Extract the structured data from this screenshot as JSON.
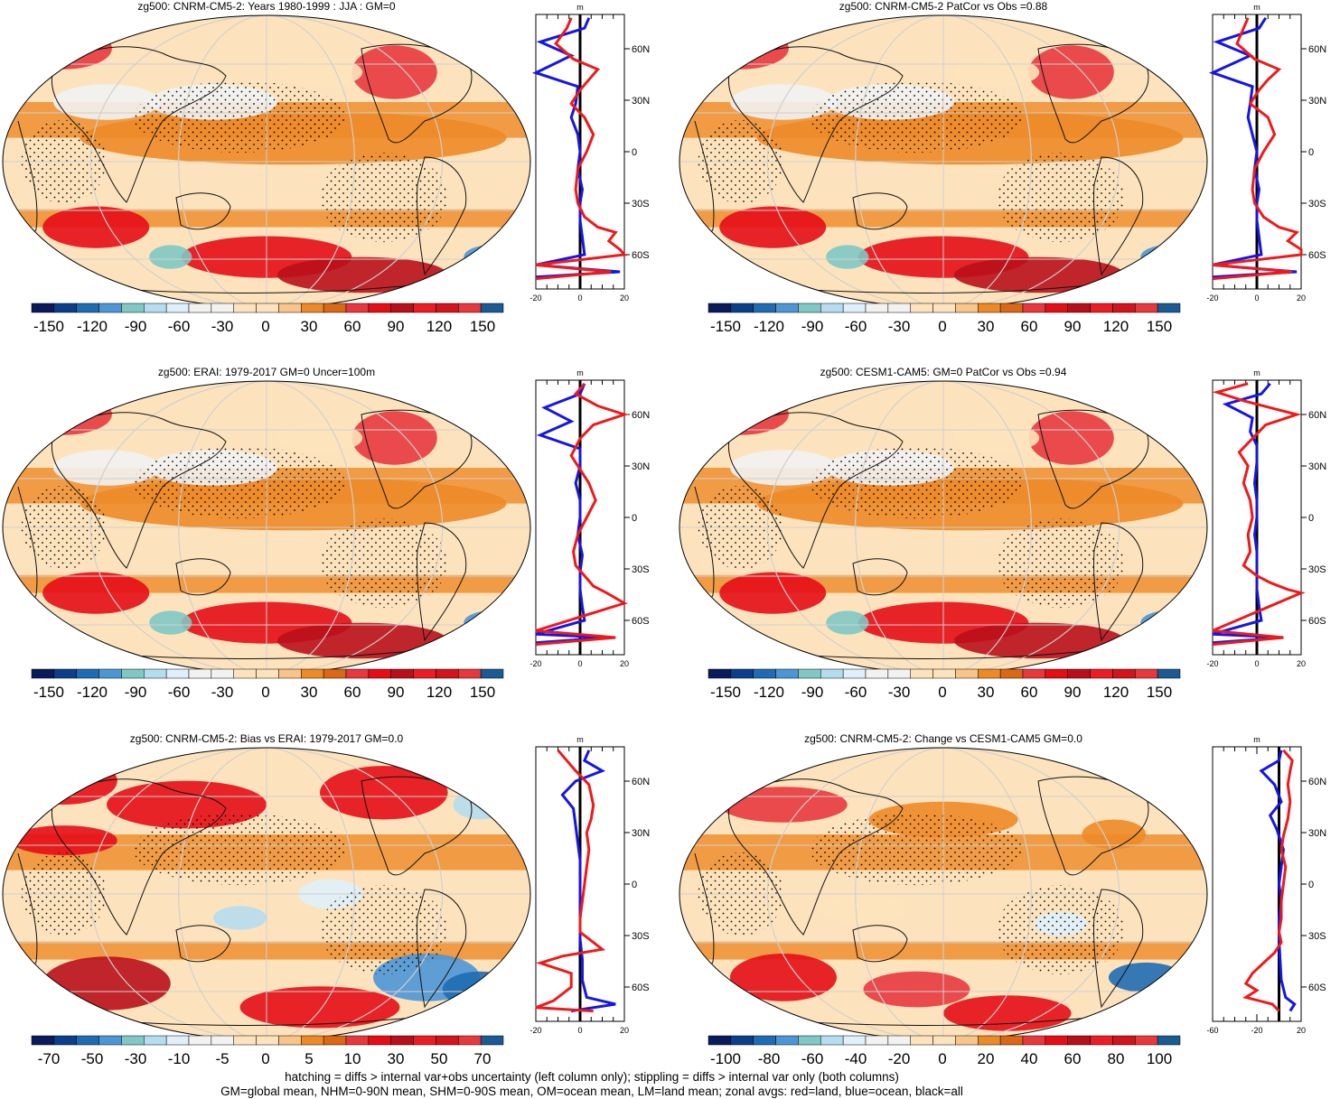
{
  "palette": [
    "#0a1a5a",
    "#0c3f8a",
    "#1f6cb3",
    "#4d96d6",
    "#7fc8c4",
    "#b6dcef",
    "#dff0fa",
    "#f2f2f2",
    "#fde3bd",
    "#f9c48a",
    "#ed8a27",
    "#db6815",
    "#e8383e",
    "#e60d16",
    "#b90f1b",
    "#ed1c24",
    "#d2141c",
    "#1b5a93"
  ],
  "panels": [
    {
      "title": "zg500: CNRM-CM5-2: Years 1980-1999 : JJA : GM=0",
      "colorbar_labels": [
        "-150",
        "-120",
        "-90",
        "-60",
        "-30",
        "0",
        "30",
        "60",
        "90",
        "120",
        "150"
      ],
      "profile": {
        "units": "m",
        "xlim": [
          -20,
          20
        ],
        "xticks": [
          "-20",
          "0",
          "20"
        ],
        "lat_labels": [
          "60N",
          "30N",
          "0",
          "30S",
          "60S"
        ],
        "red": [
          [
            -4,
            78
          ],
          [
            -6,
            72
          ],
          [
            -11,
            63
          ],
          [
            -3,
            54
          ],
          [
            8,
            48
          ],
          [
            4,
            42
          ],
          [
            0,
            36
          ],
          [
            -4,
            28
          ],
          [
            2,
            20
          ],
          [
            6,
            10
          ],
          [
            3,
            0
          ],
          [
            -1,
            -10
          ],
          [
            -2,
            -22
          ],
          [
            -1,
            -30
          ],
          [
            2,
            -38
          ],
          [
            8,
            -44
          ],
          [
            16,
            -47
          ],
          [
            13,
            -52
          ],
          [
            18,
            -57
          ],
          [
            20,
            -60
          ],
          [
            -20,
            -66
          ],
          [
            14,
            -70
          ],
          [
            -20,
            -74
          ]
        ],
        "blue": [
          [
            4,
            78
          ],
          [
            2,
            72
          ],
          [
            -18,
            64
          ],
          [
            -4,
            56
          ],
          [
            -20,
            46
          ],
          [
            -1,
            38
          ],
          [
            -2,
            28
          ],
          [
            -4,
            20
          ],
          [
            -1,
            10
          ],
          [
            0,
            0
          ],
          [
            -1,
            -10
          ],
          [
            1,
            -22
          ],
          [
            0,
            -30
          ],
          [
            0,
            -40
          ],
          [
            1,
            -50
          ],
          [
            2,
            -60
          ],
          [
            -20,
            -66
          ],
          [
            18,
            -70
          ],
          [
            -20,
            -73
          ]
        ]
      }
    },
    {
      "title": "zg500: CNRM-CM5-2 PatCor vs Obs =0.88",
      "colorbar_labels": [
        "-150",
        "-120",
        "-90",
        "-60",
        "-30",
        "0",
        "30",
        "60",
        "90",
        "120",
        "150"
      ],
      "profile": {
        "units": "m",
        "xlim": [
          -20,
          20
        ],
        "xticks": [
          "-20",
          "0",
          "20"
        ],
        "lat_labels": [
          "60N",
          "30N",
          "0",
          "30S",
          "60S"
        ],
        "red": [
          [
            -4,
            78
          ],
          [
            -6,
            72
          ],
          [
            -9,
            63
          ],
          [
            -1,
            54
          ],
          [
            10,
            48
          ],
          [
            5,
            42
          ],
          [
            1,
            36
          ],
          [
            -3,
            28
          ],
          [
            5,
            20
          ],
          [
            8,
            10
          ],
          [
            3,
            0
          ],
          [
            -1,
            -10
          ],
          [
            -2,
            -22
          ],
          [
            -1,
            -30
          ],
          [
            3,
            -38
          ],
          [
            10,
            -44
          ],
          [
            18,
            -47
          ],
          [
            14,
            -52
          ],
          [
            20,
            -57
          ],
          [
            20,
            -60
          ],
          [
            -20,
            -66
          ],
          [
            16,
            -70
          ],
          [
            -20,
            -74
          ]
        ],
        "blue": [
          [
            4,
            78
          ],
          [
            1,
            72
          ],
          [
            -18,
            64
          ],
          [
            -3,
            56
          ],
          [
            -20,
            46
          ],
          [
            -2,
            38
          ],
          [
            -3,
            28
          ],
          [
            -4,
            20
          ],
          [
            -2,
            10
          ],
          [
            0,
            0
          ],
          [
            -1,
            -10
          ],
          [
            1,
            -22
          ],
          [
            0,
            -30
          ],
          [
            0,
            -40
          ],
          [
            1,
            -50
          ],
          [
            2,
            -60
          ],
          [
            -20,
            -66
          ],
          [
            18,
            -70
          ],
          [
            -20,
            -73
          ]
        ]
      }
    },
    {
      "title": "zg500: ERAI: 1979-2017 GM=0 Uncer=100m",
      "colorbar_labels": [
        "-150",
        "-120",
        "-90",
        "-60",
        "-30",
        "0",
        "30",
        "60",
        "90",
        "120",
        "150"
      ],
      "profile": {
        "units": "m",
        "xlim": [
          -20,
          20
        ],
        "xticks": [
          "-20",
          "0",
          "20"
        ],
        "lat_labels": [
          "60N",
          "30N",
          "0",
          "30S",
          "60S"
        ],
        "red": [
          [
            2,
            78
          ],
          [
            -2,
            72
          ],
          [
            8,
            65
          ],
          [
            20,
            60
          ],
          [
            6,
            54
          ],
          [
            0,
            46
          ],
          [
            -4,
            36
          ],
          [
            0,
            28
          ],
          [
            4,
            20
          ],
          [
            7,
            10
          ],
          [
            3,
            0
          ],
          [
            -1,
            -10
          ],
          [
            -3,
            -20
          ],
          [
            -2,
            -28
          ],
          [
            2,
            -34
          ],
          [
            6,
            -40
          ],
          [
            12,
            -44
          ],
          [
            20,
            -50
          ],
          [
            -20,
            -66
          ],
          [
            16,
            -70
          ],
          [
            -20,
            -74
          ]
        ],
        "blue": [
          [
            2,
            78
          ],
          [
            0,
            72
          ],
          [
            -16,
            64
          ],
          [
            -4,
            56
          ],
          [
            -18,
            48
          ],
          [
            0,
            40
          ],
          [
            0,
            30
          ],
          [
            -2,
            20
          ],
          [
            0,
            10
          ],
          [
            0,
            0
          ],
          [
            -1,
            -10
          ],
          [
            1,
            -22
          ],
          [
            0,
            -32
          ],
          [
            0,
            -42
          ],
          [
            1,
            -52
          ],
          [
            2,
            -60
          ],
          [
            -20,
            -68
          ],
          [
            12,
            -70
          ],
          [
            -20,
            -73
          ]
        ]
      }
    },
    {
      "title": "zg500: CESM1-CAM5: GM=0 PatCor vs Obs =0.94",
      "colorbar_labels": [
        "-150",
        "-120",
        "-90",
        "-60",
        "-30",
        "0",
        "30",
        "60",
        "90",
        "120",
        "150"
      ],
      "profile": {
        "units": "m",
        "xlim": [
          -20,
          20
        ],
        "xticks": [
          "-20",
          "0",
          "20"
        ],
        "lat_labels": [
          "60N",
          "30N",
          "0",
          "30S",
          "60S"
        ],
        "red": [
          [
            -4,
            78
          ],
          [
            -18,
            73
          ],
          [
            -6,
            68
          ],
          [
            6,
            64
          ],
          [
            18,
            60
          ],
          [
            4,
            54
          ],
          [
            -2,
            46
          ],
          [
            -8,
            38
          ],
          [
            -4,
            30
          ],
          [
            -6,
            20
          ],
          [
            -3,
            10
          ],
          [
            -2,
            0
          ],
          [
            -4,
            -10
          ],
          [
            -3,
            -20
          ],
          [
            -6,
            -28
          ],
          [
            0,
            -34
          ],
          [
            6,
            -38
          ],
          [
            14,
            -42
          ],
          [
            20,
            -44
          ],
          [
            -20,
            -66
          ],
          [
            12,
            -70
          ],
          [
            -20,
            -74
          ]
        ],
        "blue": [
          [
            6,
            78
          ],
          [
            2,
            72
          ],
          [
            -14,
            66
          ],
          [
            -2,
            58
          ],
          [
            -3,
            50
          ],
          [
            0,
            42
          ],
          [
            0,
            32
          ],
          [
            -1,
            20
          ],
          [
            0,
            10
          ],
          [
            0,
            0
          ],
          [
            -1,
            -10
          ],
          [
            0,
            -20
          ],
          [
            0,
            -32
          ],
          [
            0,
            -42
          ],
          [
            1,
            -52
          ],
          [
            2,
            -60
          ],
          [
            -20,
            -68
          ],
          [
            12,
            -70
          ],
          [
            -20,
            -73
          ]
        ]
      }
    },
    {
      "title": "zg500: CNRM-CM5-2: Bias vs ERAI: 1979-2017 GM=0.0",
      "colorbar_labels": [
        "-70",
        "-50",
        "-30",
        "-10",
        "-5",
        "0",
        "5",
        "10",
        "30",
        "50",
        "70"
      ],
      "profile": {
        "units": "m",
        "xlim": [
          -20,
          20
        ],
        "xticks": [
          "-20",
          "0",
          "20"
        ],
        "lat_labels": [
          "60N",
          "30N",
          "0",
          "30S",
          "60S"
        ],
        "red": [
          [
            -10,
            78
          ],
          [
            -6,
            72
          ],
          [
            -2,
            66
          ],
          [
            4,
            58
          ],
          [
            6,
            46
          ],
          [
            5,
            38
          ],
          [
            3,
            30
          ],
          [
            4,
            20
          ],
          [
            3,
            10
          ],
          [
            2,
            0
          ],
          [
            1,
            -10
          ],
          [
            0,
            -20
          ],
          [
            0,
            -28
          ],
          [
            6,
            -34
          ],
          [
            10,
            -38
          ],
          [
            -8,
            -42
          ],
          [
            -18,
            -46
          ],
          [
            -4,
            -52
          ],
          [
            -4,
            -60
          ],
          [
            -12,
            -68
          ],
          [
            -20,
            -72
          ],
          [
            6,
            -74
          ]
        ],
        "blue": [
          [
            4,
            78
          ],
          [
            2,
            72
          ],
          [
            10,
            66
          ],
          [
            -2,
            60
          ],
          [
            -8,
            52
          ],
          [
            -3,
            44
          ],
          [
            -2,
            34
          ],
          [
            -1,
            24
          ],
          [
            0,
            14
          ],
          [
            0,
            4
          ],
          [
            0,
            -8
          ],
          [
            0,
            -20
          ],
          [
            0,
            -32
          ],
          [
            1,
            -44
          ],
          [
            1,
            -56
          ],
          [
            3,
            -66
          ],
          [
            16,
            -70
          ],
          [
            -4,
            -74
          ]
        ]
      }
    },
    {
      "title": "zg500: CNRM-CM5-2: Change vs CESM1-CAM5 GM=0.0",
      "colorbar_labels": [
        "-100",
        "-80",
        "-60",
        "-40",
        "-20",
        "0",
        "20",
        "40",
        "60",
        "80",
        "100"
      ],
      "profile": {
        "units": "m",
        "xlim": [
          -60,
          20
        ],
        "xticks": [
          "-60",
          "-20",
          "20"
        ],
        "lat_labels": [
          "60N",
          "30N",
          "0",
          "30S",
          "60S"
        ],
        "red": [
          [
            4,
            78
          ],
          [
            12,
            72
          ],
          [
            10,
            66
          ],
          [
            8,
            58
          ],
          [
            10,
            48
          ],
          [
            8,
            38
          ],
          [
            4,
            28
          ],
          [
            2,
            20
          ],
          [
            6,
            10
          ],
          [
            4,
            0
          ],
          [
            2,
            -10
          ],
          [
            2,
            -20
          ],
          [
            0,
            -28
          ],
          [
            2,
            -34
          ],
          [
            -4,
            -40
          ],
          [
            -14,
            -46
          ],
          [
            -24,
            -52
          ],
          [
            -30,
            -58
          ],
          [
            -20,
            -62
          ],
          [
            -30,
            -66
          ],
          [
            -6,
            -70
          ],
          [
            0,
            -74
          ]
        ],
        "blue": [
          [
            2,
            78
          ],
          [
            0,
            72
          ],
          [
            -16,
            66
          ],
          [
            -4,
            58
          ],
          [
            2,
            48
          ],
          [
            -8,
            40
          ],
          [
            -2,
            32
          ],
          [
            4,
            20
          ],
          [
            2,
            10
          ],
          [
            0,
            0
          ],
          [
            2,
            -10
          ],
          [
            0,
            -20
          ],
          [
            0,
            -32
          ],
          [
            1,
            -44
          ],
          [
            2,
            -56
          ],
          [
            6,
            -66
          ],
          [
            14,
            -70
          ],
          [
            10,
            -74
          ]
        ]
      }
    }
  ],
  "footer": {
    "line1": "hatching = diffs > internal var+obs uncertainty (left column only); stippling = diffs > internal var only (both columns)",
    "line2": "GM=global mean, NHM=0-90N mean, SHM=0-90S mean, OM=ocean mean, LM=land mean; zonal avgs: red=land, blue=ocean, black=all"
  }
}
